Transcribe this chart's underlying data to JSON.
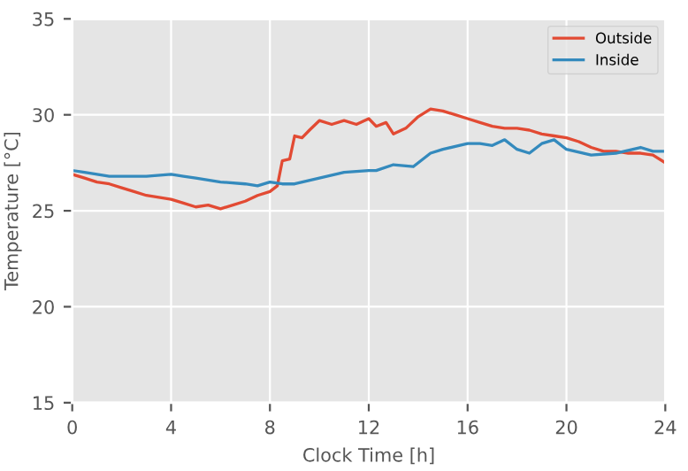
{
  "chart_data": {
    "type": "line",
    "xlabel": "Clock Time [h]",
    "ylabel": "Temperature [°C]",
    "xlim": [
      0,
      24
    ],
    "xticks": [
      0,
      4,
      8,
      12,
      16,
      20,
      24
    ],
    "ylim": [
      15,
      35
    ],
    "yticks": [
      15,
      20,
      25,
      30,
      35
    ],
    "grid": true,
    "legend": "top right",
    "series": [
      {
        "name": "Outside",
        "color": "#e24a33",
        "x": [
          0,
          0.5,
          1,
          1.5,
          2,
          2.5,
          3,
          3.5,
          4,
          4.5,
          5,
          5.5,
          6,
          6.5,
          7,
          7.5,
          8,
          8.3,
          8.5,
          8.8,
          9,
          9.3,
          9.6,
          10,
          10.5,
          11,
          11.5,
          12,
          12.3,
          12.7,
          13,
          13.5,
          14,
          14.5,
          15,
          15.5,
          16,
          16.5,
          17,
          17.5,
          18,
          18.5,
          19,
          19.5,
          20,
          20.5,
          21,
          21.5,
          22,
          22.5,
          23,
          23.5,
          24
        ],
        "values": [
          26.9,
          26.7,
          26.5,
          26.4,
          26.2,
          26.0,
          25.8,
          25.7,
          25.6,
          25.4,
          25.2,
          25.3,
          25.1,
          25.3,
          25.5,
          25.8,
          26.0,
          26.3,
          27.6,
          27.7,
          28.9,
          28.8,
          29.2,
          29.7,
          29.5,
          29.7,
          29.5,
          29.8,
          29.4,
          29.6,
          29.0,
          29.3,
          29.9,
          30.3,
          30.2,
          30.0,
          29.8,
          29.6,
          29.4,
          29.3,
          29.3,
          29.2,
          29.0,
          28.9,
          28.8,
          28.6,
          28.3,
          28.1,
          28.1,
          28.0,
          28.0,
          27.9,
          27.5
        ]
      },
      {
        "name": "Inside",
        "color": "#348abd",
        "x": [
          0,
          0.5,
          1,
          1.5,
          2,
          3,
          4,
          4.5,
          5,
          6,
          7,
          7.5,
          8,
          8.5,
          9,
          10,
          11,
          12,
          12.3,
          13,
          13.8,
          14.5,
          15,
          16,
          16.5,
          17,
          17.5,
          18,
          18.5,
          19,
          19.5,
          20,
          21,
          22,
          23,
          23.5,
          24
        ],
        "values": [
          27.1,
          27.0,
          26.9,
          26.8,
          26.8,
          26.8,
          26.9,
          26.8,
          26.7,
          26.5,
          26.4,
          26.3,
          26.5,
          26.4,
          26.4,
          26.7,
          27.0,
          27.1,
          27.1,
          27.4,
          27.3,
          28.0,
          28.2,
          28.5,
          28.5,
          28.4,
          28.7,
          28.2,
          28.0,
          28.5,
          28.7,
          28.2,
          27.9,
          28.0,
          28.3,
          28.1,
          28.1
        ]
      }
    ]
  }
}
